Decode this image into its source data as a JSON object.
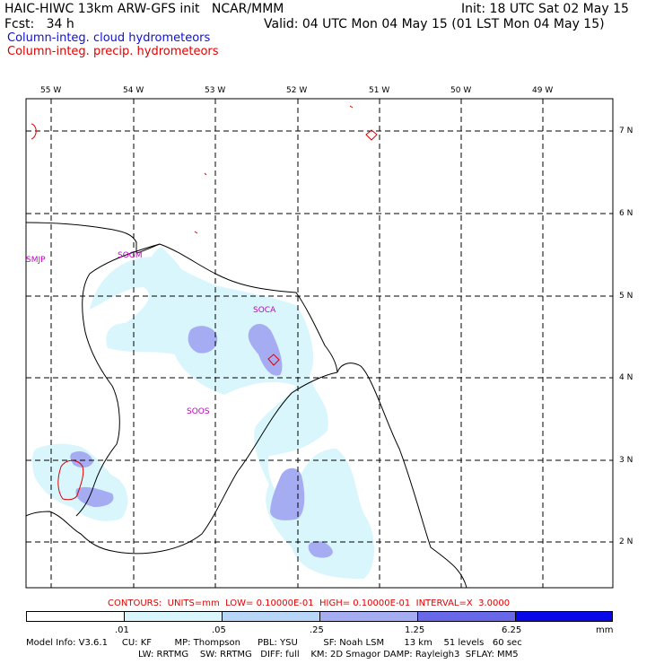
{
  "header": {
    "model_title": "HAIC-HIWC 13km ARW-GFS init   NCAR/MMM",
    "init_time": "Init: 18 UTC Sat 02 May 15",
    "fcst_label": "Fcst:   34 h",
    "valid_time": "Valid: 04 UTC Mon 04 May 15 (01 LST Mon 04 May 15)",
    "field_cloud": "Column-integ. cloud hydrometeors",
    "field_precip": "Column-integ. precip. hydrometeors"
  },
  "map": {
    "longitude_labels": [
      "55 W",
      "54 W",
      "53 W",
      "52 W",
      "51 W",
      "50 W",
      "49 W"
    ],
    "latitude_labels": [
      "7 N",
      "6 N",
      "5 N",
      "4 N",
      "3 N",
      "2 N"
    ],
    "stations": [
      "SMJP",
      "SOGM",
      "SOCA",
      "SOOS"
    ],
    "colors": {
      "coast": "#000000",
      "cloud_fill_low": "#d8f6fc",
      "cloud_fill_mid": "#a6acf2",
      "precip_contour": "#e00000",
      "station_label": "#c000c0"
    }
  },
  "contour_info": "CONTOURS:  UNITS=mm  LOW= 0.10000E-01  HIGH= 0.10000E-01  INTERVAL=X  3.0000",
  "colorbar": {
    "tick_labels": [
      ".01",
      ".05",
      ".25",
      "1.25",
      "6.25"
    ],
    "units": "mm",
    "colors": [
      "#ffffff",
      "#d8f6fc",
      "#b8d6f7",
      "#a6acf2",
      "#6868e8",
      "#0808e8"
    ]
  },
  "footer": {
    "line1": "Model Info: V3.6.1     CU: KF        MP: Thompson      PBL: YSU         SF: Noah LSM       13 km    51 levels   60 sec",
    "line2": "LW: RRTMG    SW: RRTMG   DIFF: full    KM: 2D Smagor DAMP: Rayleigh3  SFLAY: MM5"
  }
}
